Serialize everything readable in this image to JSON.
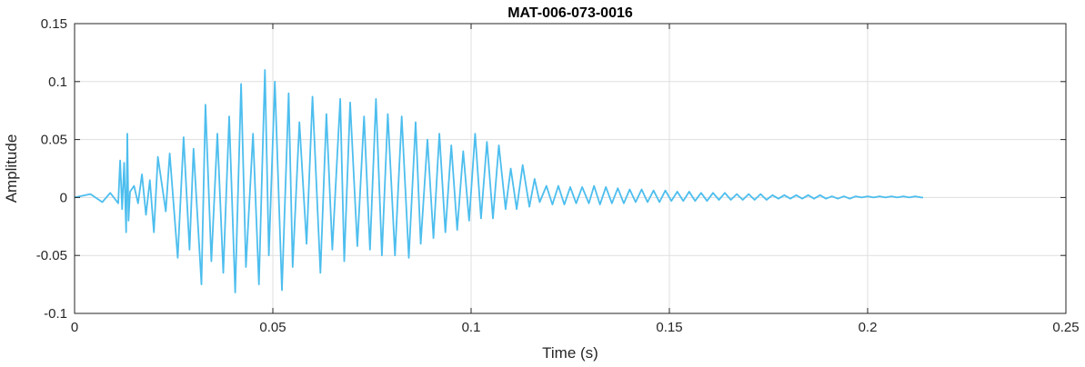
{
  "chart_data": {
    "type": "line",
    "title": "MAT-006-073-0016",
    "xlabel": "Time (s)",
    "ylabel": "Amplitude",
    "xlim": [
      0,
      0.25
    ],
    "ylim": [
      -0.1,
      0.15
    ],
    "xticks": [
      0,
      0.05,
      0.1,
      0.15,
      0.2,
      0.25
    ],
    "xtick_labels": [
      "0",
      "0.05",
      "0.1",
      "0.15",
      "0.2",
      "0.25"
    ],
    "yticks": [
      -0.1,
      -0.05,
      0,
      0.05,
      0.1,
      0.15
    ],
    "ytick_labels": [
      "-0.1",
      "-0.05",
      "0",
      "0.05",
      "0.1",
      "0.15"
    ],
    "grid": true,
    "line_color": "#4DBEEE",
    "series": [
      {
        "x": [
          0,
          0.004,
          0.007,
          0.009,
          0.011,
          0.0115,
          0.012,
          0.0125,
          0.013,
          0.0133,
          0.0136,
          0.014,
          0.015,
          0.016,
          0.017,
          0.018,
          0.019,
          0.02,
          0.021,
          0.023,
          0.024,
          0.026,
          0.0275,
          0.029,
          0.03,
          0.032,
          0.033,
          0.0345,
          0.036,
          0.0375,
          0.039,
          0.0405,
          0.042,
          0.0432,
          0.045,
          0.0465,
          0.048,
          0.049,
          0.0505,
          0.0523,
          0.054,
          0.055,
          0.0567,
          0.0585,
          0.06,
          0.062,
          0.0635,
          0.065,
          0.067,
          0.068,
          0.0695,
          0.0713,
          0.073,
          0.0745,
          0.076,
          0.0775,
          0.079,
          0.0808,
          0.0825,
          0.0843,
          0.086,
          0.0873,
          0.089,
          0.0905,
          0.092,
          0.0935,
          0.095,
          0.0965,
          0.098,
          0.0995,
          0.101,
          0.1025,
          0.104,
          0.1055,
          0.107,
          0.1087,
          0.11,
          0.1115,
          0.113,
          0.1147,
          0.116,
          0.1173,
          0.119,
          0.1205,
          0.122,
          0.1235,
          0.125,
          0.1265,
          0.128,
          0.1297,
          0.131,
          0.1325,
          0.134,
          0.1355,
          0.137,
          0.1385,
          0.14,
          0.1415,
          0.143,
          0.1445,
          0.146,
          0.1475,
          0.149,
          0.1505,
          0.152,
          0.1535,
          0.155,
          0.1565,
          0.158,
          0.1595,
          0.161,
          0.1625,
          0.164,
          0.1655,
          0.167,
          0.1685,
          0.17,
          0.1715,
          0.173,
          0.1745,
          0.176,
          0.1775,
          0.179,
          0.1805,
          0.182,
          0.1835,
          0.185,
          0.1865,
          0.188,
          0.1895,
          0.191,
          0.1925,
          0.194,
          0.1955,
          0.197,
          0.1985,
          0.2,
          0.2015,
          0.203,
          0.2045,
          0.206,
          0.2075,
          0.209,
          0.2105,
          0.212,
          0.2135,
          0.214
        ],
        "y": [
          0,
          0.003,
          -0.004,
          0.004,
          -0.005,
          0.032,
          -0.01,
          0.03,
          -0.03,
          0.055,
          -0.02,
          0.005,
          0.01,
          -0.005,
          0.02,
          -0.015,
          0.015,
          -0.03,
          0.035,
          -0.012,
          0.038,
          -0.052,
          0.052,
          -0.045,
          0.042,
          -0.075,
          0.08,
          -0.055,
          0.055,
          -0.065,
          0.07,
          -0.082,
          0.098,
          -0.06,
          0.055,
          -0.075,
          0.11,
          -0.05,
          0.1,
          -0.08,
          0.09,
          -0.06,
          0.065,
          -0.04,
          0.087,
          -0.065,
          0.072,
          -0.045,
          0.085,
          -0.055,
          0.082,
          -0.042,
          0.07,
          -0.045,
          0.085,
          -0.05,
          0.072,
          -0.05,
          0.07,
          -0.052,
          0.065,
          -0.04,
          0.05,
          -0.035,
          0.055,
          -0.03,
          0.045,
          -0.028,
          0.04,
          -0.02,
          0.055,
          -0.018,
          0.048,
          -0.018,
          0.045,
          -0.01,
          0.025,
          -0.01,
          0.028,
          -0.008,
          0.016,
          -0.004,
          0.01,
          -0.006,
          0.01,
          -0.006,
          0.009,
          -0.005,
          0.009,
          -0.005,
          0.01,
          -0.006,
          0.009,
          -0.005,
          0.008,
          -0.005,
          0.007,
          -0.004,
          0.007,
          -0.004,
          0.006,
          -0.004,
          0.006,
          -0.003,
          0.005,
          -0.003,
          0.005,
          -0.003,
          0.004,
          -0.003,
          0.004,
          -0.002,
          0.004,
          -0.002,
          0.003,
          -0.002,
          0.003,
          -0.002,
          0.003,
          -0.002,
          0.002,
          -0.001,
          0.002,
          -0.001,
          0.002,
          -0.001,
          0.002,
          -0.001,
          0.002,
          -0.001,
          0.001,
          -0.001,
          0.001,
          -0.001,
          0.001,
          0,
          0.001,
          0,
          0.001,
          0,
          0.001,
          0,
          0.001,
          0,
          0.001,
          0,
          0
        ]
      }
    ]
  }
}
